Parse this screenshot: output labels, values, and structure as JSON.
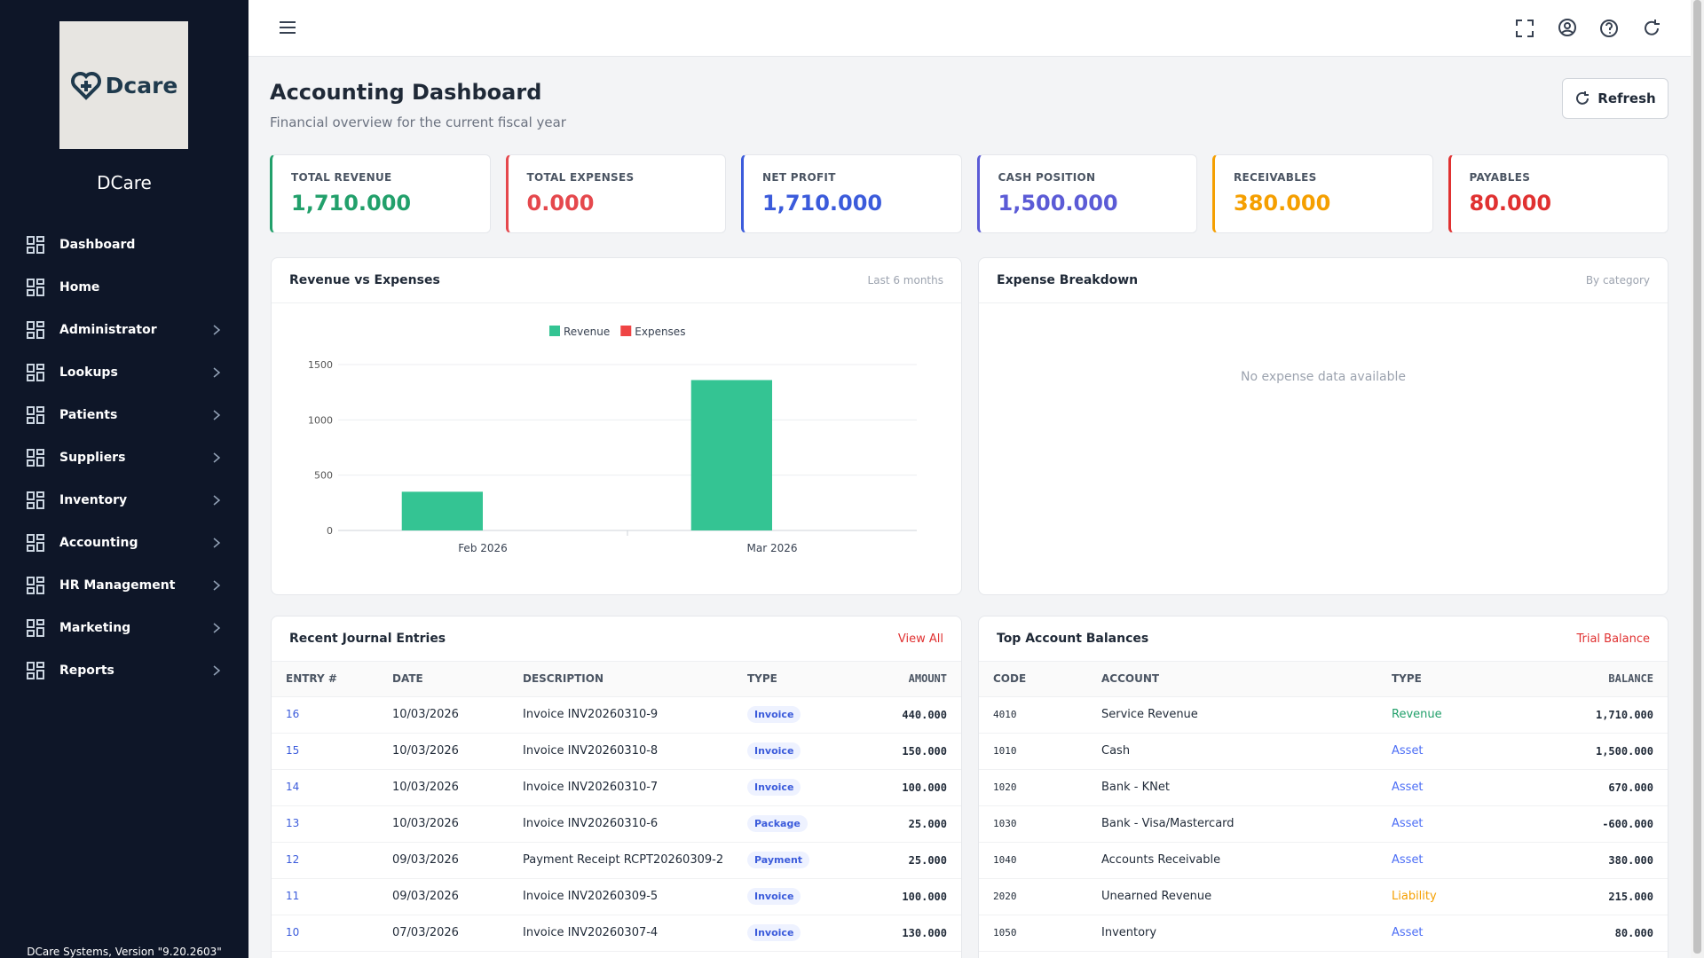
{
  "sidebar": {
    "logo": "Dcare",
    "brand": "DCare",
    "menu": [
      "Dashboard",
      "Home",
      "Administrator",
      "Lookups",
      "Patients",
      "Suppliers",
      "Inventory",
      "Accounting",
      "HR Management",
      "Marketing",
      "Reports"
    ],
    "footer": "DCare Systems, Version \"9.20.2603\""
  },
  "header": {
    "title": "Accounting Dashboard",
    "subtitle": "Financial overview for the current fiscal year",
    "refresh": "Refresh"
  },
  "kpis": [
    {
      "label": "TOTAL REVENUE",
      "value": "1,710.000",
      "color": "#22a06b"
    },
    {
      "label": "TOTAL EXPENSES",
      "value": "0.000",
      "color": "#e5484d"
    },
    {
      "label": "NET PROFIT",
      "value": "1,710.000",
      "color": "#3b5bdb"
    },
    {
      "label": "CASH POSITION",
      "value": "1,500.000",
      "color": "#5b5bd6"
    },
    {
      "label": "RECEIVABLES",
      "value": "380.000",
      "color": "#f59f00"
    },
    {
      "label": "PAYABLES",
      "value": "80.000",
      "color": "#e03131"
    }
  ],
  "chart_data": {
    "type": "bar",
    "title": "Revenue vs Expenses",
    "subtitle": "Last 6 months",
    "categories": [
      "Feb 2026",
      "Mar 2026"
    ],
    "series": [
      {
        "name": "Revenue",
        "color": "#34c493",
        "values": [
          350,
          1360
        ]
      },
      {
        "name": "Expenses",
        "color": "#ef4444",
        "values": [
          0,
          0
        ]
      }
    ],
    "ylim": [
      0,
      1500
    ],
    "yticks": [
      0,
      500,
      1000,
      1500
    ],
    "grid": true
  },
  "expense_breakdown": {
    "title": "Expense Breakdown",
    "note": "By category",
    "empty": "No expense data available"
  },
  "journal": {
    "title": "Recent Journal Entries",
    "link": "View All",
    "columns": [
      "ENTRY #",
      "DATE",
      "DESCRIPTION",
      "TYPE",
      "AMOUNT"
    ],
    "rows": [
      [
        "16",
        "10/03/2026",
        "Invoice INV20260310-9",
        "Invoice",
        "440.000"
      ],
      [
        "15",
        "10/03/2026",
        "Invoice INV20260310-8",
        "Invoice",
        "150.000"
      ],
      [
        "14",
        "10/03/2026",
        "Invoice INV20260310-7",
        "Invoice",
        "100.000"
      ],
      [
        "13",
        "10/03/2026",
        "Invoice INV20260310-6",
        "Package",
        "25.000"
      ],
      [
        "12",
        "09/03/2026",
        "Payment Receipt RCPT20260309-2",
        "Payment",
        "25.000"
      ],
      [
        "11",
        "09/03/2026",
        "Invoice INV20260309-5",
        "Invoice",
        "100.000"
      ],
      [
        "10",
        "07/03/2026",
        "Invoice INV20260307-4",
        "Invoice",
        "130.000"
      ]
    ]
  },
  "balances": {
    "title": "Top Account Balances",
    "link": "Trial Balance",
    "columns": [
      "CODE",
      "ACCOUNT",
      "TYPE",
      "BALANCE"
    ],
    "rows": [
      {
        "code": "4010",
        "account": "Service Revenue",
        "type": "Revenue",
        "color": "#22a06b",
        "balance": "1,710.000"
      },
      {
        "code": "1010",
        "account": "Cash",
        "type": "Asset",
        "color": "#4c6ef5",
        "balance": "1,500.000"
      },
      {
        "code": "1020",
        "account": "Bank - KNet",
        "type": "Asset",
        "color": "#4c6ef5",
        "balance": "670.000"
      },
      {
        "code": "1030",
        "account": "Bank - Visa/Mastercard",
        "type": "Asset",
        "color": "#4c6ef5",
        "balance": "-600.000"
      },
      {
        "code": "1040",
        "account": "Accounts Receivable",
        "type": "Asset",
        "color": "#4c6ef5",
        "balance": "380.000"
      },
      {
        "code": "2020",
        "account": "Unearned Revenue",
        "type": "Liability",
        "color": "#f59f00",
        "balance": "215.000"
      },
      {
        "code": "1050",
        "account": "Inventory",
        "type": "Asset",
        "color": "#4c6ef5",
        "balance": "80.000"
      }
    ]
  }
}
